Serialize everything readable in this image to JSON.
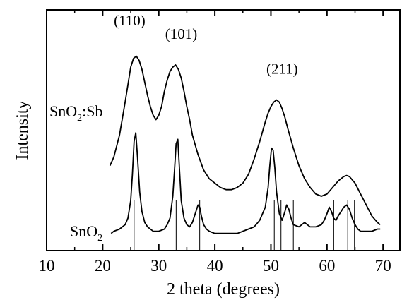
{
  "chart_data": {
    "type": "line",
    "title": "",
    "xlabel": "2 theta (degrees)",
    "ylabel": "Intensity",
    "xlim": [
      10,
      73
    ],
    "x_ticks": [
      "10",
      "20",
      "30",
      "40",
      "50",
      "60",
      "70"
    ],
    "y_ticks": [],
    "grid": false,
    "line_color": "#000000",
    "series": [
      {
        "name": "SnO2:Sb",
        "label_parts": [
          "SnO",
          "2",
          ":Sb"
        ],
        "x": [
          21.3,
          22,
          23,
          24,
          24.5,
          25,
          25.5,
          26,
          26.5,
          27,
          27.5,
          28,
          28.5,
          29,
          29.5,
          30,
          30.5,
          31,
          31.5,
          32,
          32.5,
          33,
          33.5,
          34,
          34.5,
          35,
          35.5,
          36,
          37,
          38,
          39,
          40,
          41,
          42,
          43,
          44,
          45,
          46,
          47,
          48,
          49,
          49.5,
          50,
          50.5,
          51,
          51.5,
          52,
          52.5,
          53,
          54,
          55,
          56,
          57,
          58,
          59,
          60,
          61,
          62,
          63,
          63.5,
          64,
          65,
          66,
          67,
          68,
          69,
          69.5
        ],
        "y": [
          0.34,
          0.38,
          0.48,
          0.63,
          0.71,
          0.79,
          0.83,
          0.84,
          0.82,
          0.78,
          0.72,
          0.66,
          0.61,
          0.57,
          0.55,
          0.57,
          0.61,
          0.68,
          0.73,
          0.77,
          0.79,
          0.8,
          0.78,
          0.74,
          0.68,
          0.61,
          0.55,
          0.48,
          0.39,
          0.32,
          0.28,
          0.26,
          0.24,
          0.23,
          0.23,
          0.24,
          0.26,
          0.3,
          0.37,
          0.45,
          0.54,
          0.58,
          0.61,
          0.63,
          0.64,
          0.63,
          0.6,
          0.56,
          0.51,
          0.42,
          0.34,
          0.28,
          0.24,
          0.21,
          0.2,
          0.21,
          0.24,
          0.27,
          0.29,
          0.295,
          0.29,
          0.26,
          0.21,
          0.16,
          0.11,
          0.08,
          0.07
        ]
      },
      {
        "name": "SnO2",
        "label_parts": [
          "SnO",
          "2",
          ""
        ],
        "x": [
          21.5,
          22,
          23,
          24,
          24.5,
          25,
          25.3,
          25.6,
          25.9,
          26.2,
          26.6,
          27,
          27.5,
          28,
          29,
          30,
          31,
          31.5,
          32,
          32.5,
          32.8,
          33.1,
          33.4,
          33.7,
          34,
          34.5,
          35,
          35.5,
          36,
          36.5,
          37,
          37.3,
          37.6,
          38,
          38.5,
          39,
          40,
          41,
          42,
          43,
          44,
          45,
          46,
          47,
          48,
          49,
          49.5,
          49.8,
          50.1,
          50.4,
          50.7,
          51,
          51.5,
          52,
          52.5,
          52.8,
          53.2,
          53.6,
          54,
          55,
          55.5,
          56,
          56.5,
          57,
          58,
          59,
          59.5,
          60,
          60.4,
          60.8,
          61.2,
          61.6,
          62,
          62.5,
          63,
          63.5,
          64,
          64.5,
          65,
          65.5,
          66,
          67,
          68,
          69,
          69.5
        ],
        "y": [
          0.03,
          0.04,
          0.05,
          0.07,
          0.1,
          0.18,
          0.3,
          0.45,
          0.49,
          0.38,
          0.22,
          0.13,
          0.08,
          0.06,
          0.04,
          0.04,
          0.05,
          0.07,
          0.1,
          0.2,
          0.32,
          0.44,
          0.46,
          0.32,
          0.18,
          0.1,
          0.07,
          0.06,
          0.08,
          0.12,
          0.16,
          0.15,
          0.11,
          0.07,
          0.05,
          0.04,
          0.03,
          0.03,
          0.03,
          0.03,
          0.03,
          0.04,
          0.05,
          0.06,
          0.09,
          0.15,
          0.24,
          0.34,
          0.42,
          0.41,
          0.33,
          0.22,
          0.12,
          0.09,
          0.13,
          0.16,
          0.14,
          0.1,
          0.07,
          0.06,
          0.07,
          0.08,
          0.07,
          0.06,
          0.06,
          0.07,
          0.09,
          0.12,
          0.15,
          0.13,
          0.1,
          0.09,
          0.11,
          0.13,
          0.15,
          0.16,
          0.14,
          0.1,
          0.07,
          0.05,
          0.04,
          0.04,
          0.04,
          0.05,
          0.05
        ]
      }
    ],
    "reference_lines": {
      "x": [
        25.6,
        33.1,
        37.3,
        50.6,
        51.8,
        54.0,
        61.2,
        63.7,
        64.9
      ]
    },
    "annotations": [
      {
        "text": "(110)",
        "x": 24.8,
        "y": 0.98
      },
      {
        "text": "(101)",
        "x": 34.0,
        "y": 0.92
      },
      {
        "text": "(211)",
        "x": 52.0,
        "y": 0.76
      }
    ]
  }
}
